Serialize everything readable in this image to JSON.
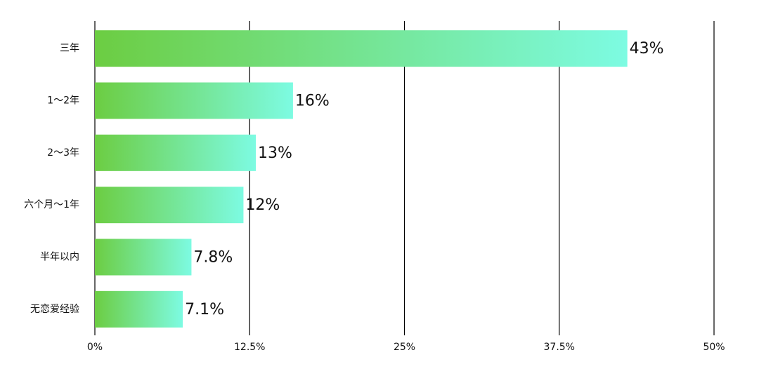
{
  "chart_data": {
    "type": "barh",
    "categories": [
      "三年",
      "1～2年",
      "2～3年",
      "六个月～1年",
      "半年以内",
      "无恋爱经验"
    ],
    "values": [
      43,
      16,
      13,
      12,
      7.8,
      7.1
    ],
    "value_labels": [
      "43%",
      "16%",
      "13%",
      "12%",
      "7.8%",
      "7.1%"
    ],
    "colors": [
      "#6ccd42",
      "#7dfbe2"
    ],
    "xlim": [
      0,
      50
    ],
    "xticks": [
      {
        "value": 0,
        "label": "0%"
      },
      {
        "value": 12.5,
        "label": "12.5%"
      },
      {
        "value": 25,
        "label": "25%"
      },
      {
        "value": 37.5,
        "label": "37.5%"
      },
      {
        "value": 50,
        "label": "50%"
      }
    ],
    "grid": true
  }
}
